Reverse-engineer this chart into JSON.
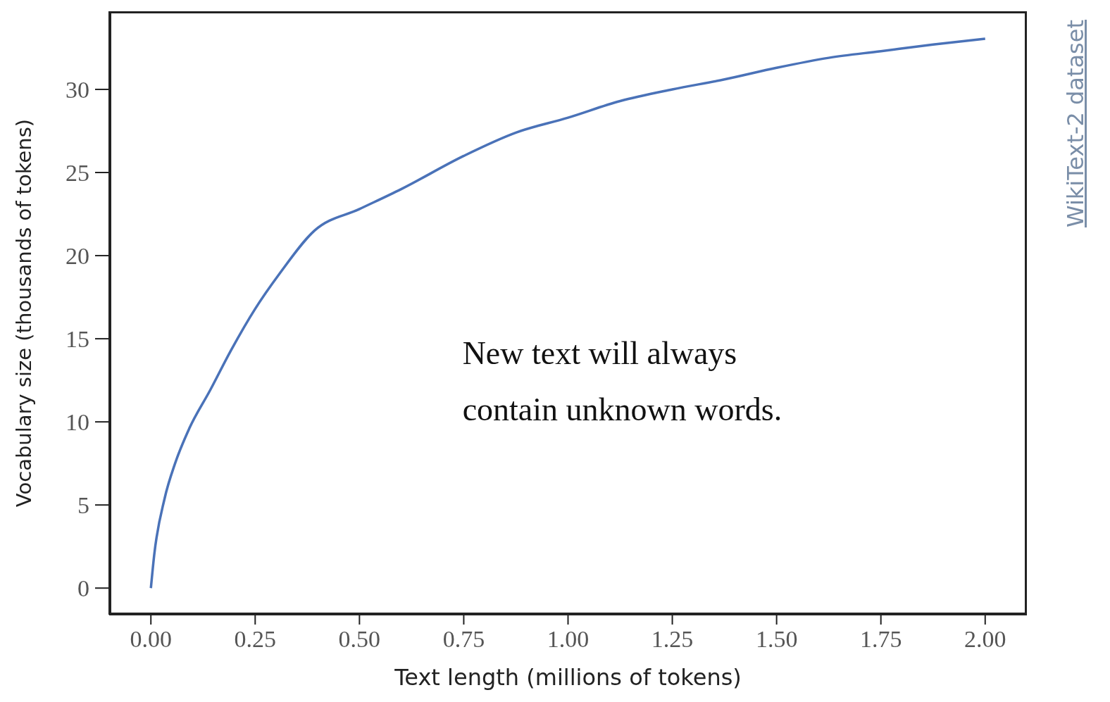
{
  "chart_data": {
    "type": "line",
    "xlabel": "Text length (millions of tokens)",
    "ylabel": "Vocabulary size (thousands of tokens)",
    "x": [
      0,
      0.008,
      0.033,
      0.058,
      0.092,
      0.142,
      0.192,
      0.25,
      0.308,
      0.392,
      0.5,
      0.6,
      0.75,
      0.875,
      1.0,
      1.125,
      1.25,
      1.375,
      1.5,
      1.625,
      1.75,
      1.875,
      2.0
    ],
    "series": [
      {
        "color": "#4a72b8",
        "values": [
          0,
          2.0,
          5.4,
          7.5,
          9.6,
          11.9,
          14.3,
          16.8,
          18.9,
          21.5,
          22.8,
          24.0,
          26.0,
          27.4,
          28.3,
          29.3,
          30.0,
          30.6,
          31.3,
          31.9,
          32.3,
          32.7,
          33.05
        ]
      }
    ],
    "xlim": [
      -0.1,
      2.1
    ],
    "ylim": [
      -1.6,
      34.7
    ],
    "xticks": [
      {
        "value": 0,
        "label": "0.00"
      },
      {
        "value": 0.25,
        "label": "0.25"
      },
      {
        "value": 0.5,
        "label": "0.50"
      },
      {
        "value": 0.75,
        "label": "0.75"
      },
      {
        "value": 1,
        "label": "1.00"
      },
      {
        "value": 1.25,
        "label": "1.25"
      },
      {
        "value": 1.5,
        "label": "1.50"
      },
      {
        "value": 1.75,
        "label": "1.75"
      },
      {
        "value": 2,
        "label": "2.00"
      }
    ],
    "yticks": [
      0,
      5,
      10,
      15,
      20,
      25,
      30
    ],
    "grid": false,
    "legend": false,
    "marker": "none",
    "line_style": "solid",
    "annotations": [
      "New text will always contain unknown words.",
      "WikiText-2 dataset"
    ]
  }
}
